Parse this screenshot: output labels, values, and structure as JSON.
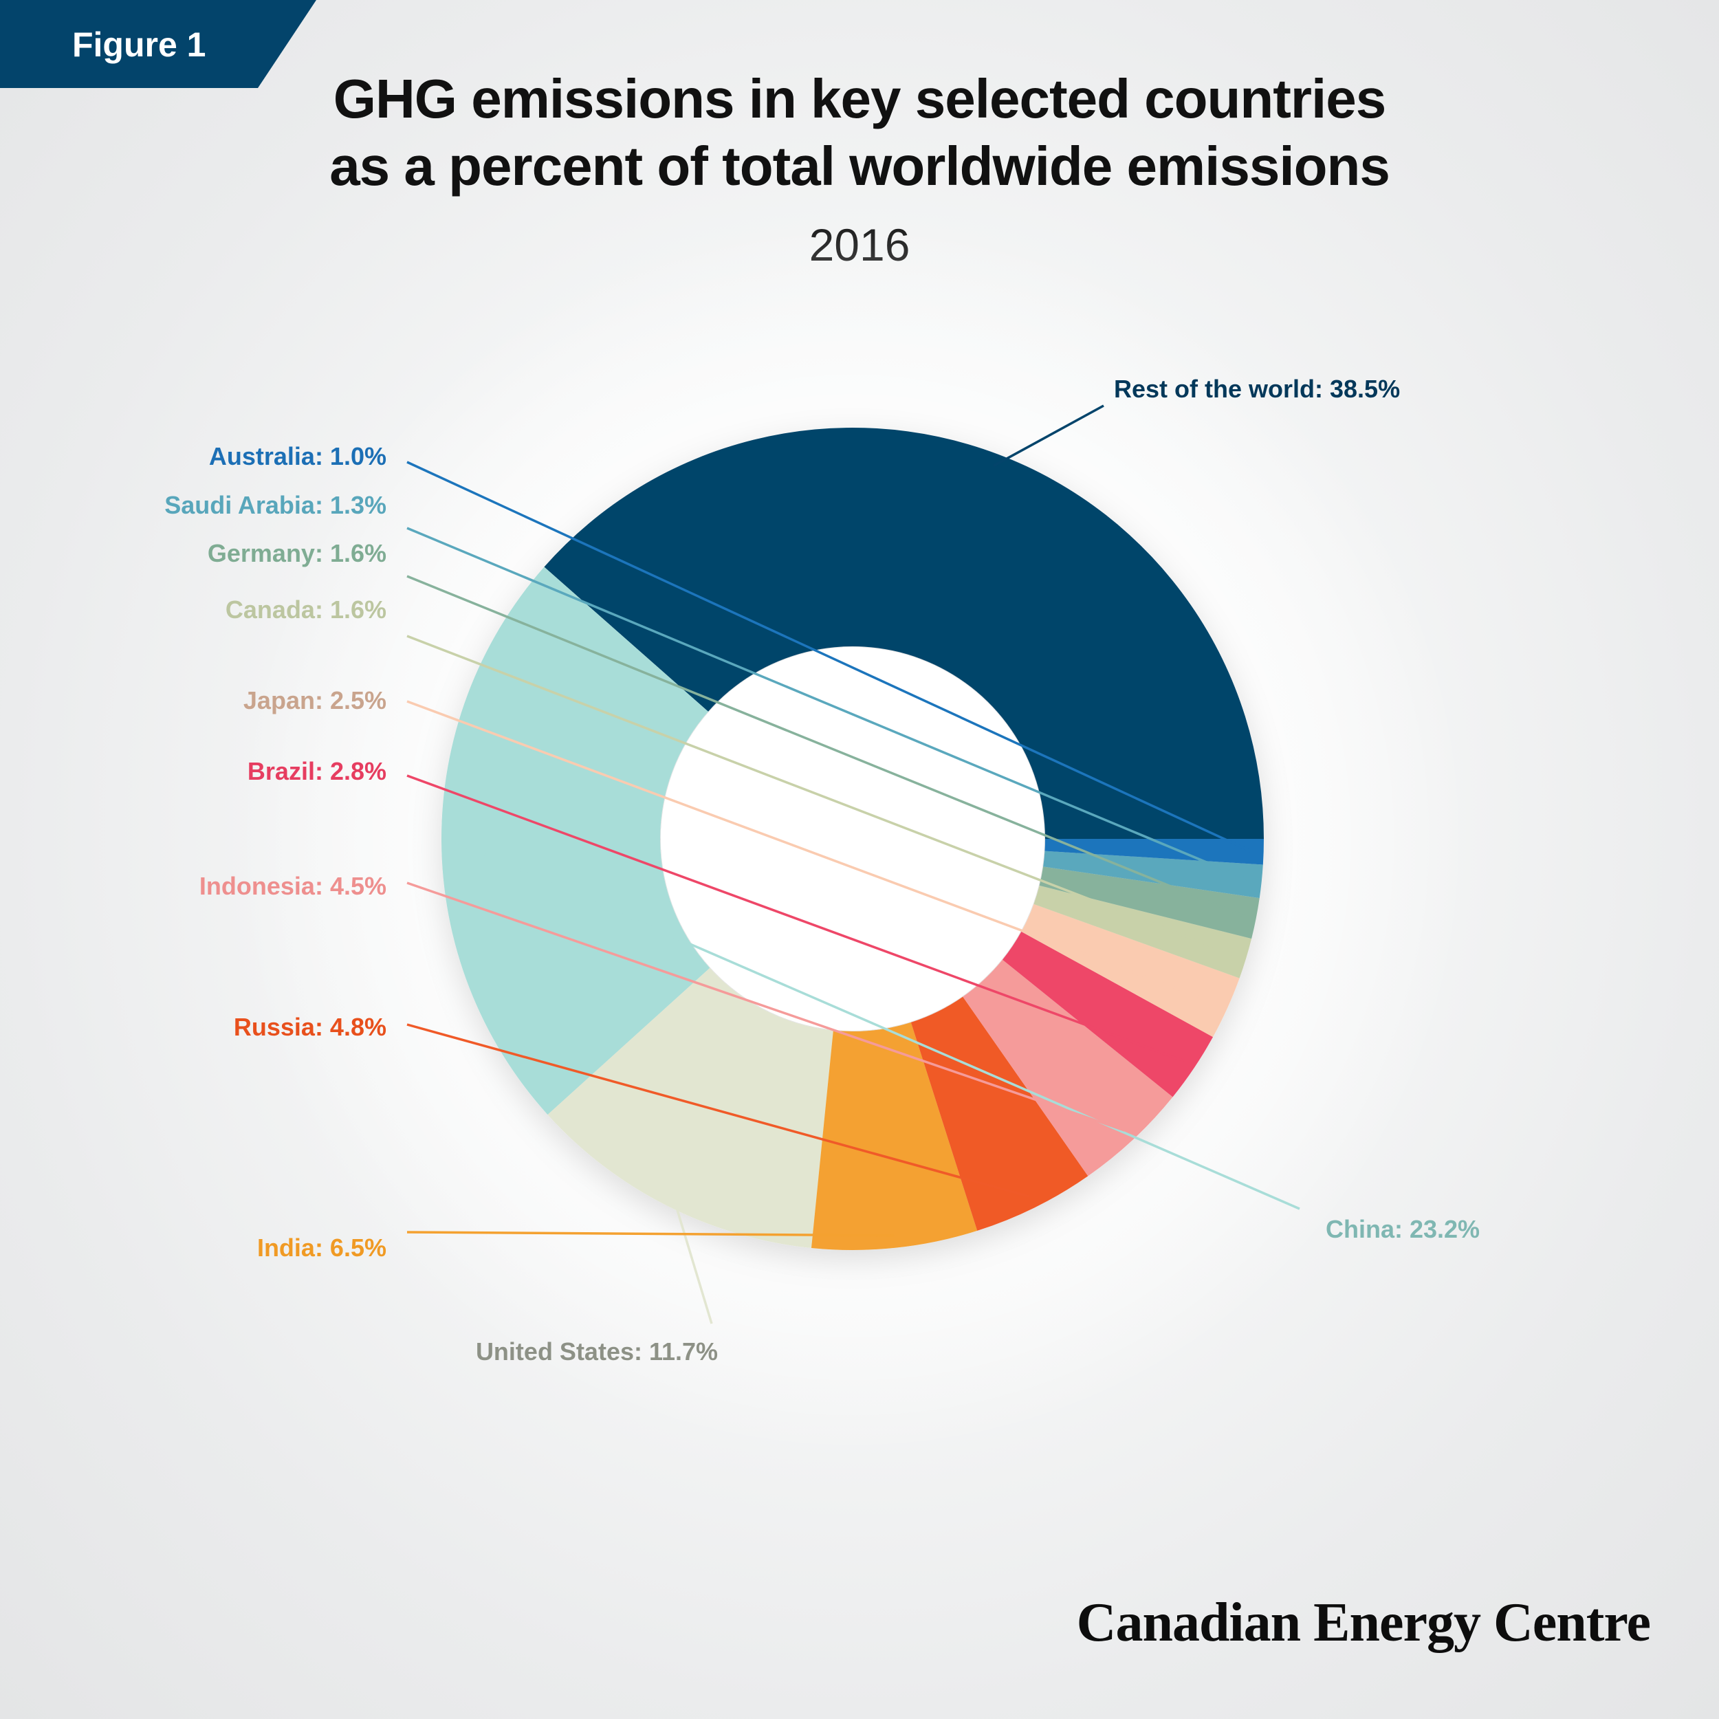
{
  "figure_label": "Figure 1",
  "brand": "Canadian Energy Centre",
  "colors": {
    "tab": "#03446b",
    "background": "#ecedee"
  },
  "chart_data": {
    "type": "pie",
    "donut": true,
    "title_line1": "GHG emissions in key selected countries",
    "title_line2": "as a percent of total worldwide emissions",
    "subtitle": "2016",
    "slices": [
      {
        "name": "Rest of the world",
        "value": 38.5,
        "label": "Rest of the world: 38.5%",
        "color": "#03446b",
        "label_color": "#03385a"
      },
      {
        "name": "China",
        "value": 23.2,
        "label": "China: 23.2%",
        "color": "#a8ddd8",
        "label_color": "#7fb7b2"
      },
      {
        "name": "United States",
        "value": 11.7,
        "label": "United States: 11.7%",
        "color": "#e2e6d1",
        "label_color": "#8d9186"
      },
      {
        "name": "India",
        "value": 6.5,
        "label": "India: 6.5%",
        "color": "#f4a130",
        "label_color": "#f09a24"
      },
      {
        "name": "Russia",
        "value": 4.8,
        "label": "Russia: 4.8%",
        "color": "#f05a28",
        "label_color": "#e8501c"
      },
      {
        "name": "Indonesia",
        "value": 4.5,
        "label": "Indonesia: 4.5%",
        "color": "#f59b9a",
        "label_color": "#ee8f8e"
      },
      {
        "name": "Brazil",
        "value": 2.8,
        "label": "Brazil: 2.8%",
        "color": "#ee4768",
        "label_color": "#e63d60"
      },
      {
        "name": "Japan",
        "value": 2.5,
        "label": "Japan: 2.5%",
        "color": "#facbb0",
        "label_color": "#c9a48d"
      },
      {
        "name": "Canada",
        "value": 1.6,
        "label": "Canada: 1.6%",
        "color": "#c8d1a9",
        "label_color": "#bcc6a0"
      },
      {
        "name": "Germany",
        "value": 1.6,
        "label": "Germany: 1.6%",
        "color": "#87b29c",
        "label_color": "#7fac93"
      },
      {
        "name": "Saudi Arabia",
        "value": 1.3,
        "label": "Saudi Arabia: 1.3%",
        "color": "#5aa8bd",
        "label_color": "#58a6bb"
      },
      {
        "name": "Australia",
        "value": 1.0,
        "label": "Australia: 1.0%",
        "color": "#1c75bc",
        "label_color": "#1c6fb5"
      }
    ]
  }
}
